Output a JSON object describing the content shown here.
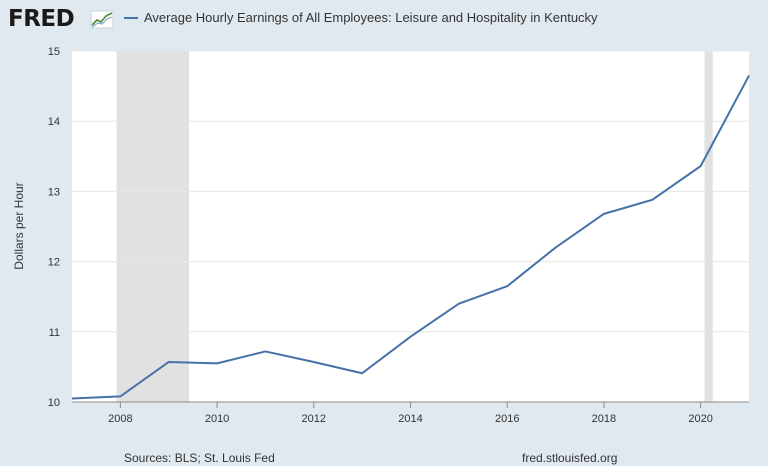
{
  "header": {
    "logo_text": "FRED",
    "logo_icon": "trend-line-icon",
    "legend_label": "Average Hourly Earnings of All Employees: Leisure and Hospitality in Kentucky"
  },
  "footer": {
    "sources": "Sources: BLS; St. Louis Fed",
    "url": "fred.stlouisfed.org"
  },
  "colors": {
    "series": "#4572a7",
    "recession": "#e1e1e1",
    "background": "#e1e9f0",
    "plot": "#ffffff",
    "grid": "#e6e6e6"
  },
  "chart_data": {
    "type": "line",
    "title": "",
    "xlabel": "",
    "ylabel": "Dollars per Hour",
    "xlim": [
      2007,
      2021
    ],
    "ylim": [
      10,
      15
    ],
    "yticks": [
      10,
      11,
      12,
      13,
      14,
      15
    ],
    "xticks": [
      2008,
      2010,
      2012,
      2014,
      2016,
      2018,
      2020
    ],
    "recessions": [
      [
        2007.92,
        2009.42
      ],
      [
        2020.08,
        2020.25
      ]
    ],
    "series": [
      {
        "name": "Average Hourly Earnings of All Employees: Leisure and Hospitality in Kentucky",
        "x": [
          2007,
          2008,
          2009,
          2010,
          2011,
          2012,
          2013,
          2014,
          2015,
          2016,
          2017,
          2018,
          2019,
          2020,
          2021
        ],
        "values": [
          10.05,
          10.08,
          10.57,
          10.55,
          10.72,
          10.57,
          10.41,
          10.93,
          11.4,
          11.65,
          12.2,
          12.68,
          12.88,
          13.36,
          14.65
        ]
      }
    ]
  }
}
